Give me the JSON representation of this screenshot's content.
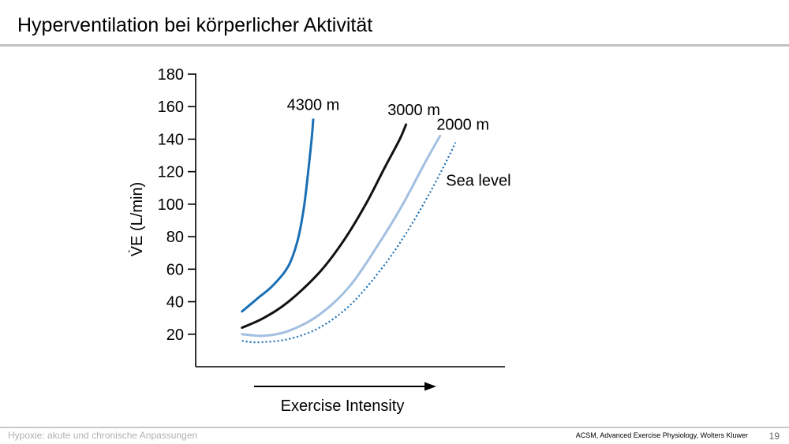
{
  "slide": {
    "title": "Hyperventilation bei körperlicher Aktivität",
    "footer_left": "Hypoxie: akute und chronische Anpassungen",
    "source": "ACSM, Advanced Exercise Physiology, Wolters Kluwer",
    "page_number": "19"
  },
  "chart_data": {
    "type": "line",
    "ylabel": "V̇E (L/min)",
    "xlabel": "Exercise Intensity",
    "ylim": [
      0,
      180
    ],
    "xlim": [
      0,
      100
    ],
    "yticks": [
      20,
      40,
      60,
      80,
      100,
      120,
      140,
      160,
      180
    ],
    "grid": false,
    "legend": "inline labels next to curves",
    "series": [
      {
        "name": "4300 m",
        "color": "#1a6fb5",
        "dash": "solid",
        "points": [
          [
            15,
            34
          ],
          [
            20,
            42
          ],
          [
            25,
            50
          ],
          [
            30,
            62
          ],
          [
            33,
            78
          ],
          [
            35,
            98
          ],
          [
            36.5,
            122
          ],
          [
            37.5,
            140
          ],
          [
            38,
            152
          ]
        ]
      },
      {
        "name": "3000 m",
        "color": "#111111",
        "dash": "solid",
        "points": [
          [
            15,
            24
          ],
          [
            22,
            30
          ],
          [
            30,
            40
          ],
          [
            40,
            58
          ],
          [
            48,
            78
          ],
          [
            55,
            100
          ],
          [
            61,
            122
          ],
          [
            66,
            140
          ],
          [
            68,
            149
          ]
        ]
      },
      {
        "name": "2000 m",
        "color": "#a3bfe2",
        "dash": "solid",
        "points": [
          [
            15,
            20
          ],
          [
            22,
            19
          ],
          [
            30,
            22
          ],
          [
            40,
            32
          ],
          [
            50,
            50
          ],
          [
            60,
            78
          ],
          [
            67,
            100
          ],
          [
            74,
            125
          ],
          [
            79,
            142
          ]
        ]
      },
      {
        "name": "Sea level",
        "color": "#1a6fb5",
        "dash": "dotted",
        "points": [
          [
            15,
            16
          ],
          [
            20,
            15
          ],
          [
            30,
            17
          ],
          [
            40,
            24
          ],
          [
            50,
            38
          ],
          [
            60,
            60
          ],
          [
            68,
            82
          ],
          [
            76,
            108
          ],
          [
            82,
            130
          ],
          [
            84,
            138
          ]
        ]
      }
    ]
  }
}
